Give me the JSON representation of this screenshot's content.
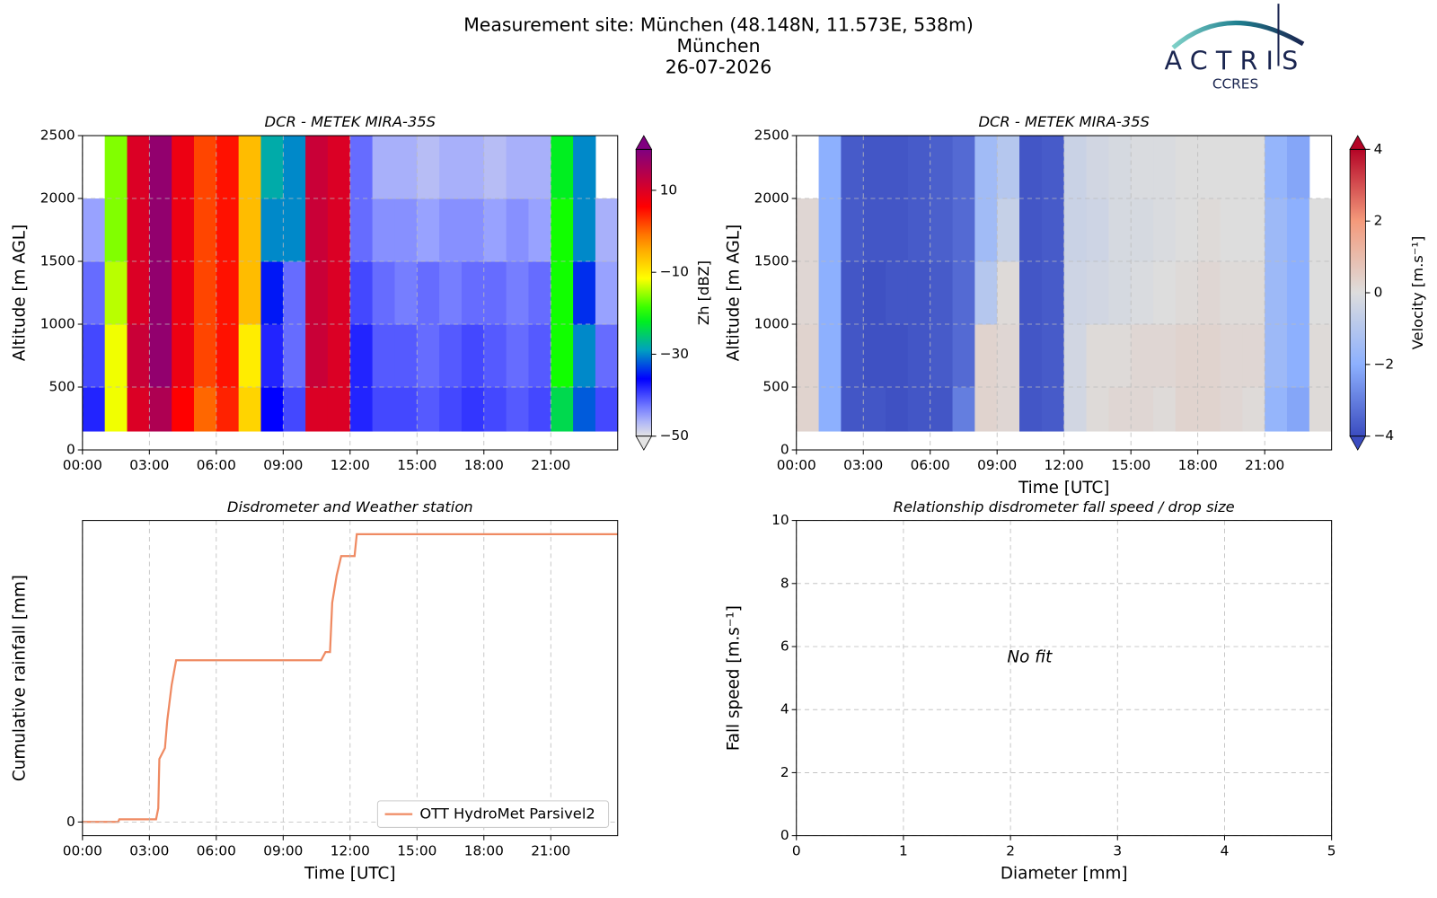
{
  "header": {
    "title": "Measurement site: München (48.148N, 11.573E, 538m)",
    "subtitle": "München",
    "date": "26-07-2026"
  },
  "logo": {
    "name": "ACTRIS",
    "subtitle": "CCRES"
  },
  "chart_data": [
    {
      "type": "heatmap",
      "title": "DCR - METEK MIRA-35S",
      "ylabel": "Altitude [m AGL]",
      "colorbar_label": "Zh [dBZ]",
      "colormap": "reflectivity",
      "grid": true,
      "x_edges": [
        0,
        1,
        2,
        3,
        4,
        5,
        6,
        7,
        8,
        9,
        10,
        11,
        12,
        13,
        14,
        15,
        16,
        17,
        18,
        19,
        20,
        21,
        22,
        23,
        24
      ],
      "y_edges": [
        150,
        500,
        1000,
        1500,
        2000,
        2500
      ],
      "values": [
        [
          -38,
          -12,
          10,
          15,
          6,
          0,
          4,
          -8,
          -36,
          -40,
          10,
          10,
          -38,
          -40,
          -40,
          -41,
          -40,
          -39,
          -40,
          -41,
          -40,
          -24,
          -32,
          -40
        ],
        [
          -40,
          -12,
          12,
          18,
          8,
          2,
          5,
          -10,
          -38,
          -42,
          12,
          10,
          -38,
          -41,
          -41,
          -42,
          -41,
          -40,
          -41,
          -42,
          -41,
          -20,
          -30,
          -42
        ],
        [
          -42,
          -14,
          10,
          18,
          8,
          2,
          5,
          -6,
          -35,
          -42,
          12,
          10,
          -40,
          -42,
          -43,
          -42,
          -43,
          -42,
          -42,
          -43,
          -42,
          -20,
          -34,
          -45
        ],
        [
          -45,
          -16,
          10,
          18,
          8,
          2,
          5,
          -6,
          -30,
          -30,
          12,
          10,
          -42,
          -44,
          -44,
          -45,
          -44,
          -44,
          -45,
          -44,
          -45,
          -20,
          -30,
          -46
        ],
        [
          null,
          -16,
          10,
          18,
          8,
          2,
          5,
          -6,
          -28,
          -30,
          12,
          10,
          -42,
          -46,
          -46,
          -47,
          -46,
          -46,
          -47,
          -46,
          -46,
          -22,
          -30,
          null
        ]
      ],
      "xlim": [
        0,
        24
      ],
      "xticks": [
        {
          "value": 0,
          "label": "00:00"
        },
        {
          "value": 3,
          "label": "03:00"
        },
        {
          "value": 6,
          "label": "06:00"
        },
        {
          "value": 9,
          "label": "09:00"
        },
        {
          "value": 12,
          "label": "12:00"
        },
        {
          "value": 15,
          "label": "15:00"
        },
        {
          "value": 18,
          "label": "18:00"
        },
        {
          "value": 21,
          "label": "21:00"
        }
      ],
      "ylim": [
        0,
        2500
      ],
      "yticks": [
        0,
        500,
        1000,
        1500,
        2000,
        2500
      ],
      "clim": [
        -50,
        20
      ],
      "cticks": [
        {
          "value": -50,
          "label": "−50"
        },
        {
          "value": -30,
          "label": "−30"
        },
        {
          "value": -10,
          "label": "−10"
        },
        10
      ]
    },
    {
      "type": "heatmap",
      "title": "DCR - METEK MIRA-35S",
      "ylabel": "Altitude [m AGL]",
      "xlabel": "Time [UTC]",
      "colorbar_label": "Velocity [m.s⁻¹]",
      "colormap": "coolwarm",
      "grid": true,
      "x_edges": [
        0,
        1,
        2,
        3,
        4,
        5,
        6,
        7,
        8,
        9,
        10,
        11,
        12,
        13,
        14,
        15,
        16,
        17,
        18,
        19,
        20,
        21,
        22,
        23,
        24
      ],
      "y_edges": [
        150,
        500,
        1000,
        1500,
        2000,
        2500
      ],
      "values": [
        [
          0.3,
          -2,
          -3.8,
          -3.8,
          -3.9,
          -3.8,
          -3.8,
          -3,
          0.3,
          0.2,
          -3.8,
          -3.7,
          -0.3,
          0.1,
          0.2,
          0.2,
          0.1,
          0.3,
          0.3,
          0.2,
          0.1,
          -1.8,
          -2.2,
          0.1
        ],
        [
          0.3,
          -2,
          -3.8,
          -3.9,
          -3.9,
          -3.8,
          -3.7,
          -3.4,
          0.3,
          0.2,
          -3.8,
          -3.7,
          -0.3,
          0.1,
          0.1,
          0.2,
          0.2,
          0.3,
          0.3,
          0.2,
          0.2,
          -1.6,
          -2,
          0.1
        ],
        [
          0.2,
          -2,
          -3.8,
          -3.9,
          -3.8,
          -3.8,
          -3.7,
          -3.4,
          -1,
          0.1,
          -3.8,
          -3.7,
          -0.4,
          -0.3,
          -0.2,
          -0.1,
          0,
          0.1,
          0.2,
          0.1,
          0.1,
          -1.6,
          -2,
          0
        ],
        [
          0.2,
          -2,
          -3.7,
          -3.8,
          -3.8,
          -3.7,
          -3.6,
          -3.4,
          -1.5,
          -0.6,
          -3.8,
          -3.7,
          -0.5,
          -0.4,
          -0.2,
          -0.2,
          -0.1,
          0,
          0.1,
          0,
          0,
          -1.6,
          -2,
          0
        ],
        [
          null,
          -2,
          -3.7,
          -3.8,
          -3.8,
          -3.7,
          -3.6,
          -3.4,
          -1.5,
          -1,
          -3.8,
          -3.7,
          -0.5,
          -0.3,
          -0.2,
          -0.1,
          -0.1,
          0,
          0,
          0,
          0,
          -1.8,
          -2.2,
          null
        ]
      ],
      "xlim": [
        0,
        24
      ],
      "xticks": [
        {
          "value": 0,
          "label": "00:00"
        },
        {
          "value": 3,
          "label": "03:00"
        },
        {
          "value": 6,
          "label": "06:00"
        },
        {
          "value": 9,
          "label": "09:00"
        },
        {
          "value": 12,
          "label": "12:00"
        },
        {
          "value": 15,
          "label": "15:00"
        },
        {
          "value": 18,
          "label": "18:00"
        },
        {
          "value": 21,
          "label": "21:00"
        }
      ],
      "ylim": [
        0,
        2500
      ],
      "yticks": [
        0,
        500,
        1000,
        1500,
        2000,
        2500
      ],
      "clim": [
        -4,
        4
      ],
      "cticks": [
        {
          "value": -4,
          "label": "−4"
        },
        {
          "value": -2,
          "label": "−2"
        },
        0,
        2,
        4
      ]
    },
    {
      "type": "line",
      "title": "Disdrometer and Weather station",
      "ylabel": "Cumulative rainfall [mm]",
      "xlabel": "Time [UTC]",
      "grid": true,
      "legend": "lower right",
      "x": [
        0,
        1.6,
        1.65,
        3.3,
        3.4,
        3.45,
        3.7,
        3.8,
        4.0,
        4.2,
        10.7,
        10.9,
        11.1,
        11.2,
        11.4,
        11.6,
        12.2,
        12.3,
        24
      ],
      "series": [
        {
          "name": "OTT HydroMet Parsivel2",
          "color": "#ef8a62",
          "values": [
            0,
            0,
            0.1,
            0.1,
            0.5,
            2.3,
            2.7,
            3.7,
            5.0,
            5.9,
            5.9,
            6.2,
            6.2,
            8.0,
            9.0,
            9.7,
            9.7,
            10.5,
            10.5
          ]
        }
      ],
      "xlim": [
        0,
        24
      ],
      "xticks": [
        {
          "value": 0,
          "label": "00:00"
        },
        {
          "value": 3,
          "label": "03:00"
        },
        {
          "value": 6,
          "label": "06:00"
        },
        {
          "value": 9,
          "label": "09:00"
        },
        {
          "value": 12,
          "label": "12:00"
        },
        {
          "value": 15,
          "label": "15:00"
        },
        {
          "value": 18,
          "label": "18:00"
        },
        {
          "value": 21,
          "label": "21:00"
        }
      ],
      "ylim": [
        -0.5,
        11
      ],
      "yticks": [
        0
      ]
    },
    {
      "type": "scatter",
      "title": "Relationship disdrometer fall speed / drop size",
      "ylabel": "Fall speed [m.s⁻¹]",
      "xlabel": "Diameter [mm]",
      "annotation": "No fit",
      "grid": true,
      "xlim": [
        0,
        5
      ],
      "xticks": [
        0,
        1,
        2,
        3,
        4,
        5
      ],
      "ylim": [
        0,
        10
      ],
      "yticks": [
        0,
        2,
        4,
        6,
        8,
        10
      ]
    }
  ]
}
